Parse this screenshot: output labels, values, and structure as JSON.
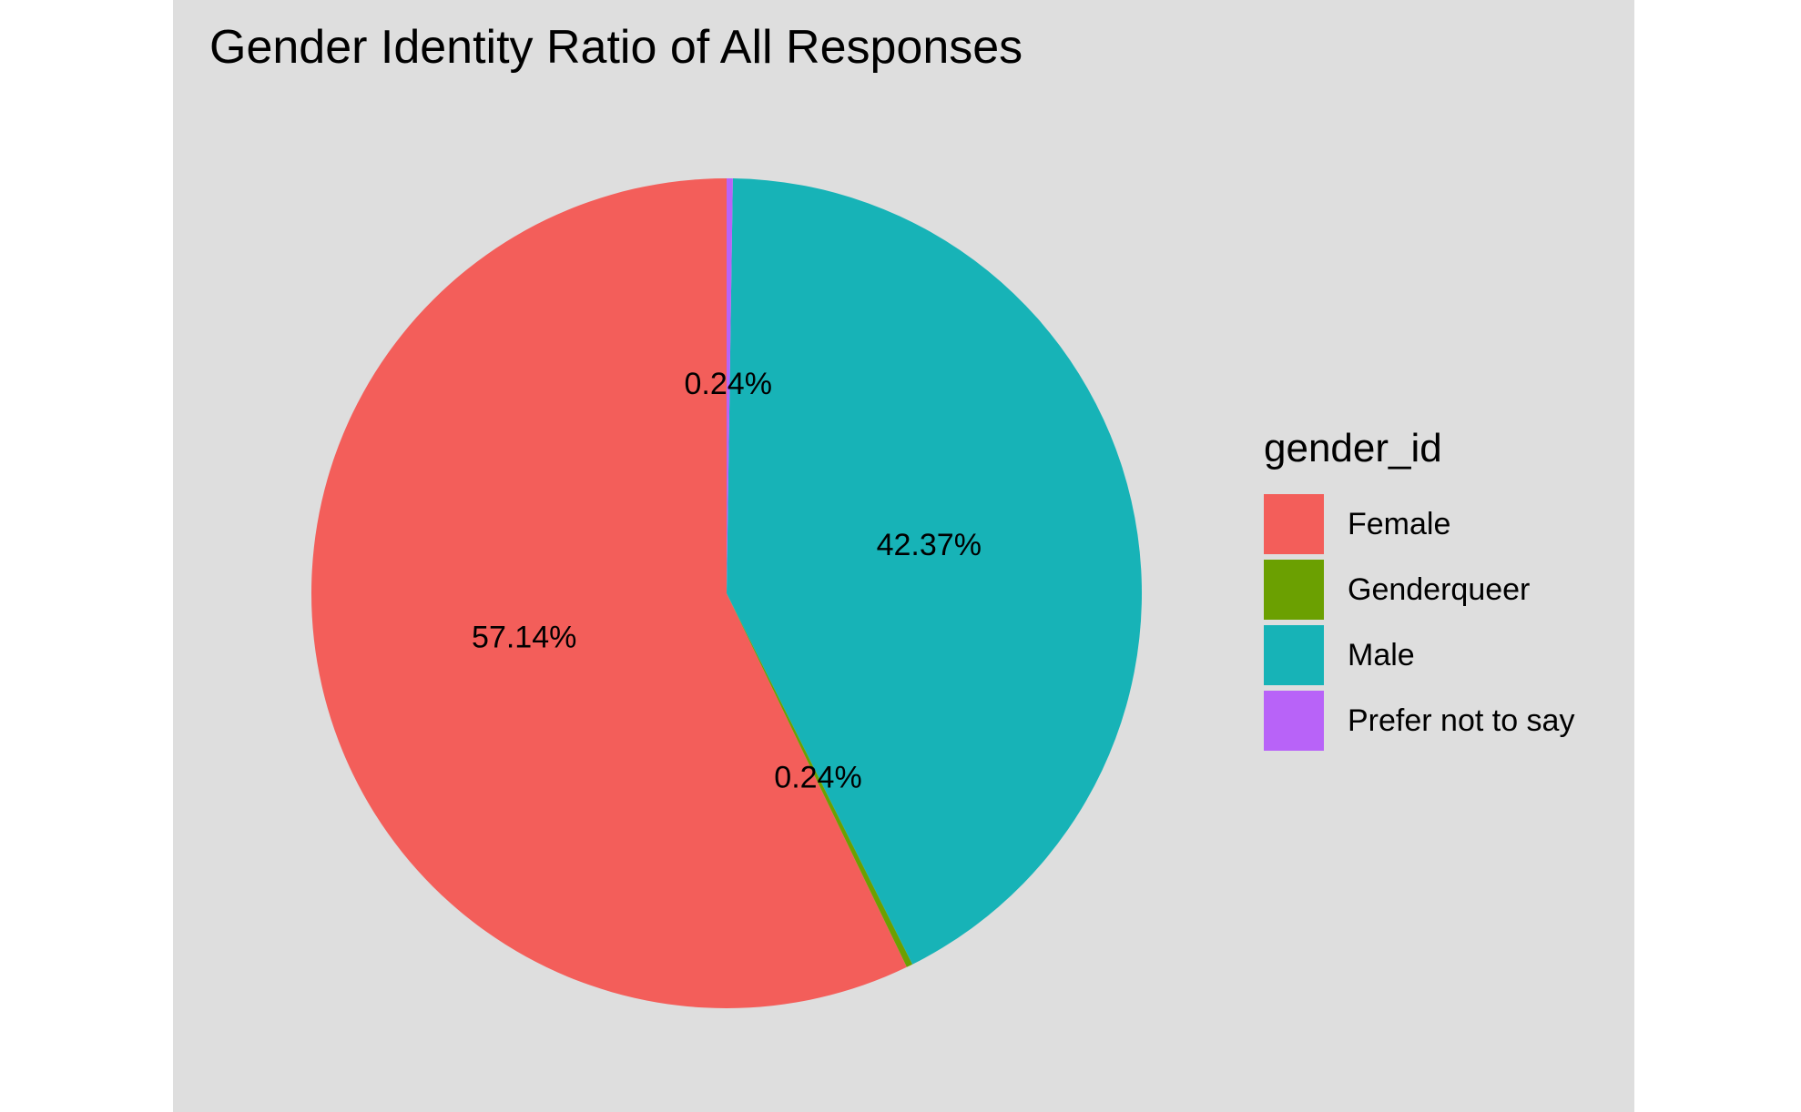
{
  "chart_data": {
    "type": "pie",
    "title": "Gender Identity Ratio of All Responses",
    "legend": {
      "title": "gender_id",
      "placement": "right"
    },
    "slices": [
      {
        "name": "Female",
        "value": 57.14,
        "label": "57.14%",
        "color": "#F35E5A"
      },
      {
        "name": "Genderqueer",
        "value": 0.24,
        "label": "0.24%",
        "color": "#6BA001"
      },
      {
        "name": "Male",
        "value": 42.37,
        "label": "42.37%",
        "color": "#17B3B7"
      },
      {
        "name": "Prefer not to say",
        "value": 0.24,
        "label": "0.24%",
        "color": "#B863F8"
      }
    ]
  }
}
